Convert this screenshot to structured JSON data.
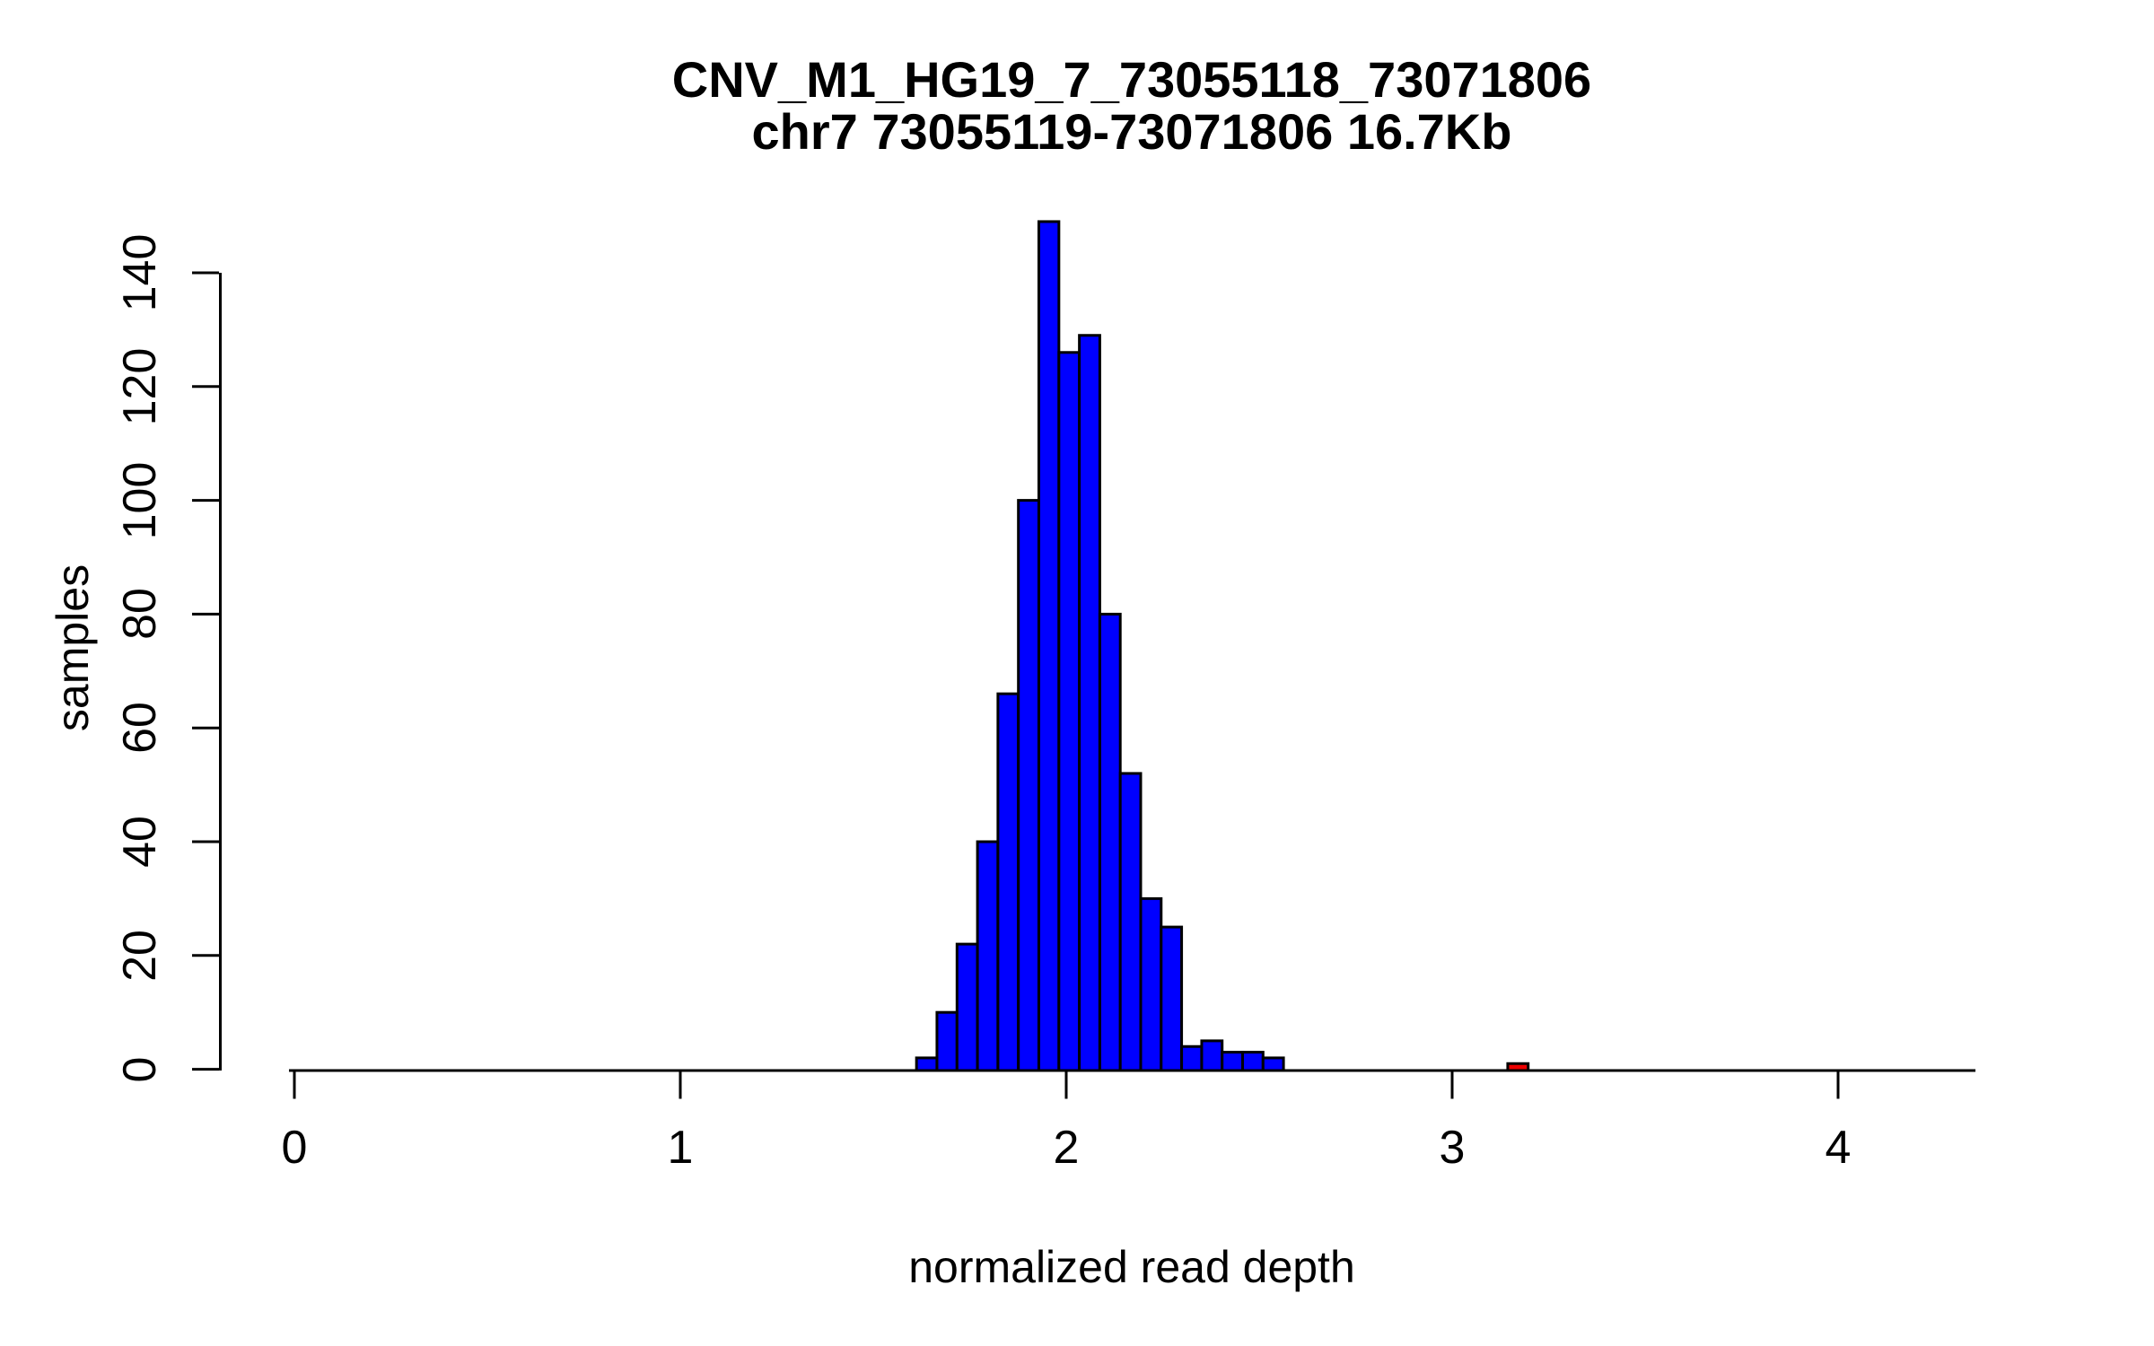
{
  "title": {
    "line1": "CNV_M1_HG19_7_73055118_73071806",
    "line2": "chr7 73055119-73071806 16.7Kb"
  },
  "chart_data": {
    "type": "bar",
    "subtype": "histogram",
    "title": "CNV_M1_HG19_7_73055118_73071806",
    "subtitle": "chr7 73055119-73071806 16.7Kb",
    "xlabel": "normalized read depth",
    "ylabel": "samples",
    "x_ticks": [
      0,
      1,
      2,
      3,
      4
    ],
    "y_ticks": [
      0,
      20,
      40,
      60,
      80,
      100,
      120,
      140
    ],
    "xlim": [
      -0.014,
      4.356
    ],
    "ylim": [
      0,
      149
    ],
    "grid": "off",
    "legend": "none",
    "bin_width": 0.053,
    "bars": [
      {
        "x0": 1.612,
        "x1": 1.665,
        "count": 2,
        "highlight": false
      },
      {
        "x0": 1.665,
        "x1": 1.717,
        "count": 10,
        "highlight": false
      },
      {
        "x0": 1.717,
        "x1": 1.77,
        "count": 22,
        "highlight": false
      },
      {
        "x0": 1.77,
        "x1": 1.823,
        "count": 40,
        "highlight": false
      },
      {
        "x0": 1.823,
        "x1": 1.876,
        "count": 66,
        "highlight": false
      },
      {
        "x0": 1.876,
        "x1": 1.929,
        "count": 100,
        "highlight": false
      },
      {
        "x0": 1.929,
        "x1": 1.981,
        "count": 149,
        "highlight": false
      },
      {
        "x0": 1.981,
        "x1": 2.034,
        "count": 126,
        "highlight": false
      },
      {
        "x0": 2.034,
        "x1": 2.087,
        "count": 129,
        "highlight": false
      },
      {
        "x0": 2.087,
        "x1": 2.14,
        "count": 80,
        "highlight": false
      },
      {
        "x0": 2.14,
        "x1": 2.193,
        "count": 52,
        "highlight": false
      },
      {
        "x0": 2.193,
        "x1": 2.246,
        "count": 30,
        "highlight": false
      },
      {
        "x0": 2.246,
        "x1": 2.299,
        "count": 25,
        "highlight": false
      },
      {
        "x0": 2.299,
        "x1": 2.351,
        "count": 4,
        "highlight": false
      },
      {
        "x0": 2.351,
        "x1": 2.404,
        "count": 5,
        "highlight": false
      },
      {
        "x0": 2.404,
        "x1": 2.457,
        "count": 3,
        "highlight": false
      },
      {
        "x0": 2.457,
        "x1": 2.51,
        "count": 3,
        "highlight": false
      },
      {
        "x0": 2.51,
        "x1": 2.563,
        "count": 2,
        "highlight": false
      },
      {
        "x0": 3.144,
        "x1": 3.197,
        "count": 1,
        "highlight": true
      }
    ],
    "colors": {
      "bar_fill": "#0000ff",
      "highlight_fill": "#ee0000",
      "bar_border": "#000000",
      "axis": "#000000",
      "background": "#ffffff"
    }
  }
}
